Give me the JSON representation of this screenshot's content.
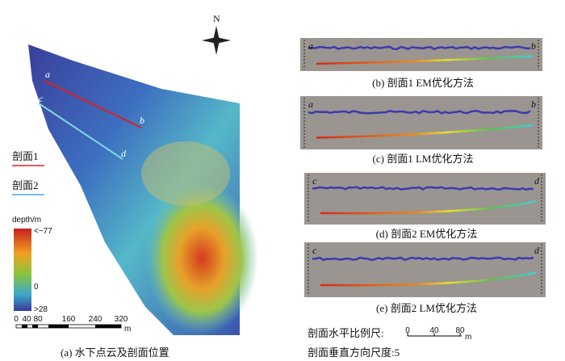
{
  "map": {
    "north": "N",
    "points": [
      "a",
      "b",
      "c",
      "d"
    ],
    "legend": [
      "剖面1",
      "剖面2"
    ],
    "colorbar": {
      "title": "depth/m",
      "top": "<−77",
      "middle": "0",
      "bottom": ">28"
    },
    "scale": {
      "ticks": [
        "0",
        "40",
        "80",
        "160",
        "240",
        "320"
      ],
      "unit": "m"
    },
    "caption": "(a) 水下点云及剖面位置"
  },
  "profiles": [
    {
      "left": "a",
      "right": "b",
      "caption": "(b) 剖面1 EM优化方法"
    },
    {
      "left": "a",
      "right": "b",
      "caption": "(c) 剖面1 LM优化方法"
    },
    {
      "left": "c",
      "right": "d",
      "caption": "(d) 剖面2 EM优化方法"
    },
    {
      "left": "c",
      "right": "d",
      "caption": "(e) 剖面2 LM优化方法"
    }
  ],
  "scale_note": {
    "horizontal": "剖面水平比例尺:",
    "ticks": [
      "0",
      "40",
      "80"
    ],
    "unit": "m",
    "vertical": "剖面垂直方向尺度:5"
  }
}
